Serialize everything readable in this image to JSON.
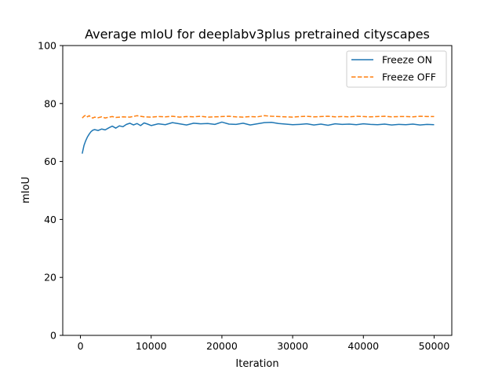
{
  "chart_data": {
    "type": "line",
    "title": "Average mIoU for deeplabv3plus pretrained cityscapes",
    "xlabel": "Iteration",
    "ylabel": "mIoU",
    "xlim": [
      -2500,
      52500
    ],
    "ylim": [
      0,
      100
    ],
    "xticks": [
      0,
      10000,
      20000,
      30000,
      40000,
      50000
    ],
    "yticks": [
      0,
      20,
      40,
      60,
      80,
      100
    ],
    "grid": false,
    "legend": "top-right",
    "series": [
      {
        "name": "Freeze ON",
        "color": "#1f77b4",
        "style": "solid",
        "x": [
          250,
          500,
          750,
          1000,
          1250,
          1500,
          1750,
          2000,
          2500,
          3000,
          3500,
          4000,
          4500,
          5000,
          5500,
          6000,
          6500,
          7000,
          7500,
          8000,
          8500,
          9000,
          9500,
          10000,
          11000,
          12000,
          13000,
          14000,
          15000,
          16000,
          17000,
          18000,
          19000,
          20000,
          21000,
          22000,
          23000,
          24000,
          25000,
          26000,
          27000,
          28000,
          29000,
          30000,
          31000,
          32000,
          33000,
          34000,
          35000,
          36000,
          37000,
          38000,
          39000,
          40000,
          41000,
          42000,
          43000,
          44000,
          45000,
          46000,
          47000,
          48000,
          49000,
          50000
        ],
        "values": [
          62.7,
          65.5,
          67.2,
          68.5,
          69.5,
          70.3,
          70.8,
          71.0,
          70.7,
          71.2,
          70.9,
          71.6,
          72.2,
          71.5,
          72.3,
          72.0,
          72.8,
          73.2,
          72.6,
          73.1,
          72.4,
          73.3,
          72.9,
          72.4,
          73.0,
          72.7,
          73.4,
          73.0,
          72.6,
          73.2,
          73.0,
          73.1,
          72.8,
          73.6,
          72.9,
          72.8,
          73.2,
          72.6,
          73.0,
          73.4,
          73.5,
          73.1,
          72.9,
          72.7,
          72.8,
          73.0,
          72.6,
          72.9,
          72.5,
          73.0,
          72.8,
          72.9,
          72.7,
          73.0,
          72.8,
          72.7,
          72.9,
          72.6,
          72.8,
          72.7,
          72.9,
          72.6,
          72.8,
          72.7
        ]
      },
      {
        "name": "Freeze OFF",
        "color": "#ff7f0e",
        "style": "dashed",
        "x": [
          250,
          500,
          750,
          1000,
          1250,
          1500,
          1750,
          2000,
          2500,
          3000,
          3500,
          4000,
          4500,
          5000,
          6000,
          7000,
          8000,
          9000,
          10000,
          11000,
          12000,
          13000,
          14000,
          15000,
          16000,
          17000,
          18000,
          19000,
          20000,
          21000,
          22000,
          23000,
          24000,
          25000,
          26000,
          27000,
          28000,
          29000,
          30000,
          31000,
          32000,
          33000,
          34000,
          35000,
          36000,
          37000,
          38000,
          39000,
          40000,
          41000,
          42000,
          43000,
          44000,
          45000,
          46000,
          47000,
          48000,
          49000,
          50000
        ],
        "values": [
          75.0,
          75.6,
          76.0,
          75.4,
          75.8,
          75.2,
          75.0,
          75.3,
          75.1,
          75.4,
          75.0,
          75.3,
          75.5,
          75.2,
          75.4,
          75.3,
          75.8,
          75.4,
          75.3,
          75.5,
          75.4,
          75.6,
          75.3,
          75.5,
          75.4,
          75.6,
          75.3,
          75.4,
          75.5,
          75.6,
          75.4,
          75.3,
          75.5,
          75.4,
          75.8,
          75.6,
          75.5,
          75.4,
          75.3,
          75.5,
          75.6,
          75.4,
          75.5,
          75.6,
          75.4,
          75.5,
          75.4,
          75.6,
          75.5,
          75.4,
          75.5,
          75.6,
          75.4,
          75.5,
          75.5,
          75.4,
          75.6,
          75.5,
          75.5
        ]
      }
    ]
  }
}
